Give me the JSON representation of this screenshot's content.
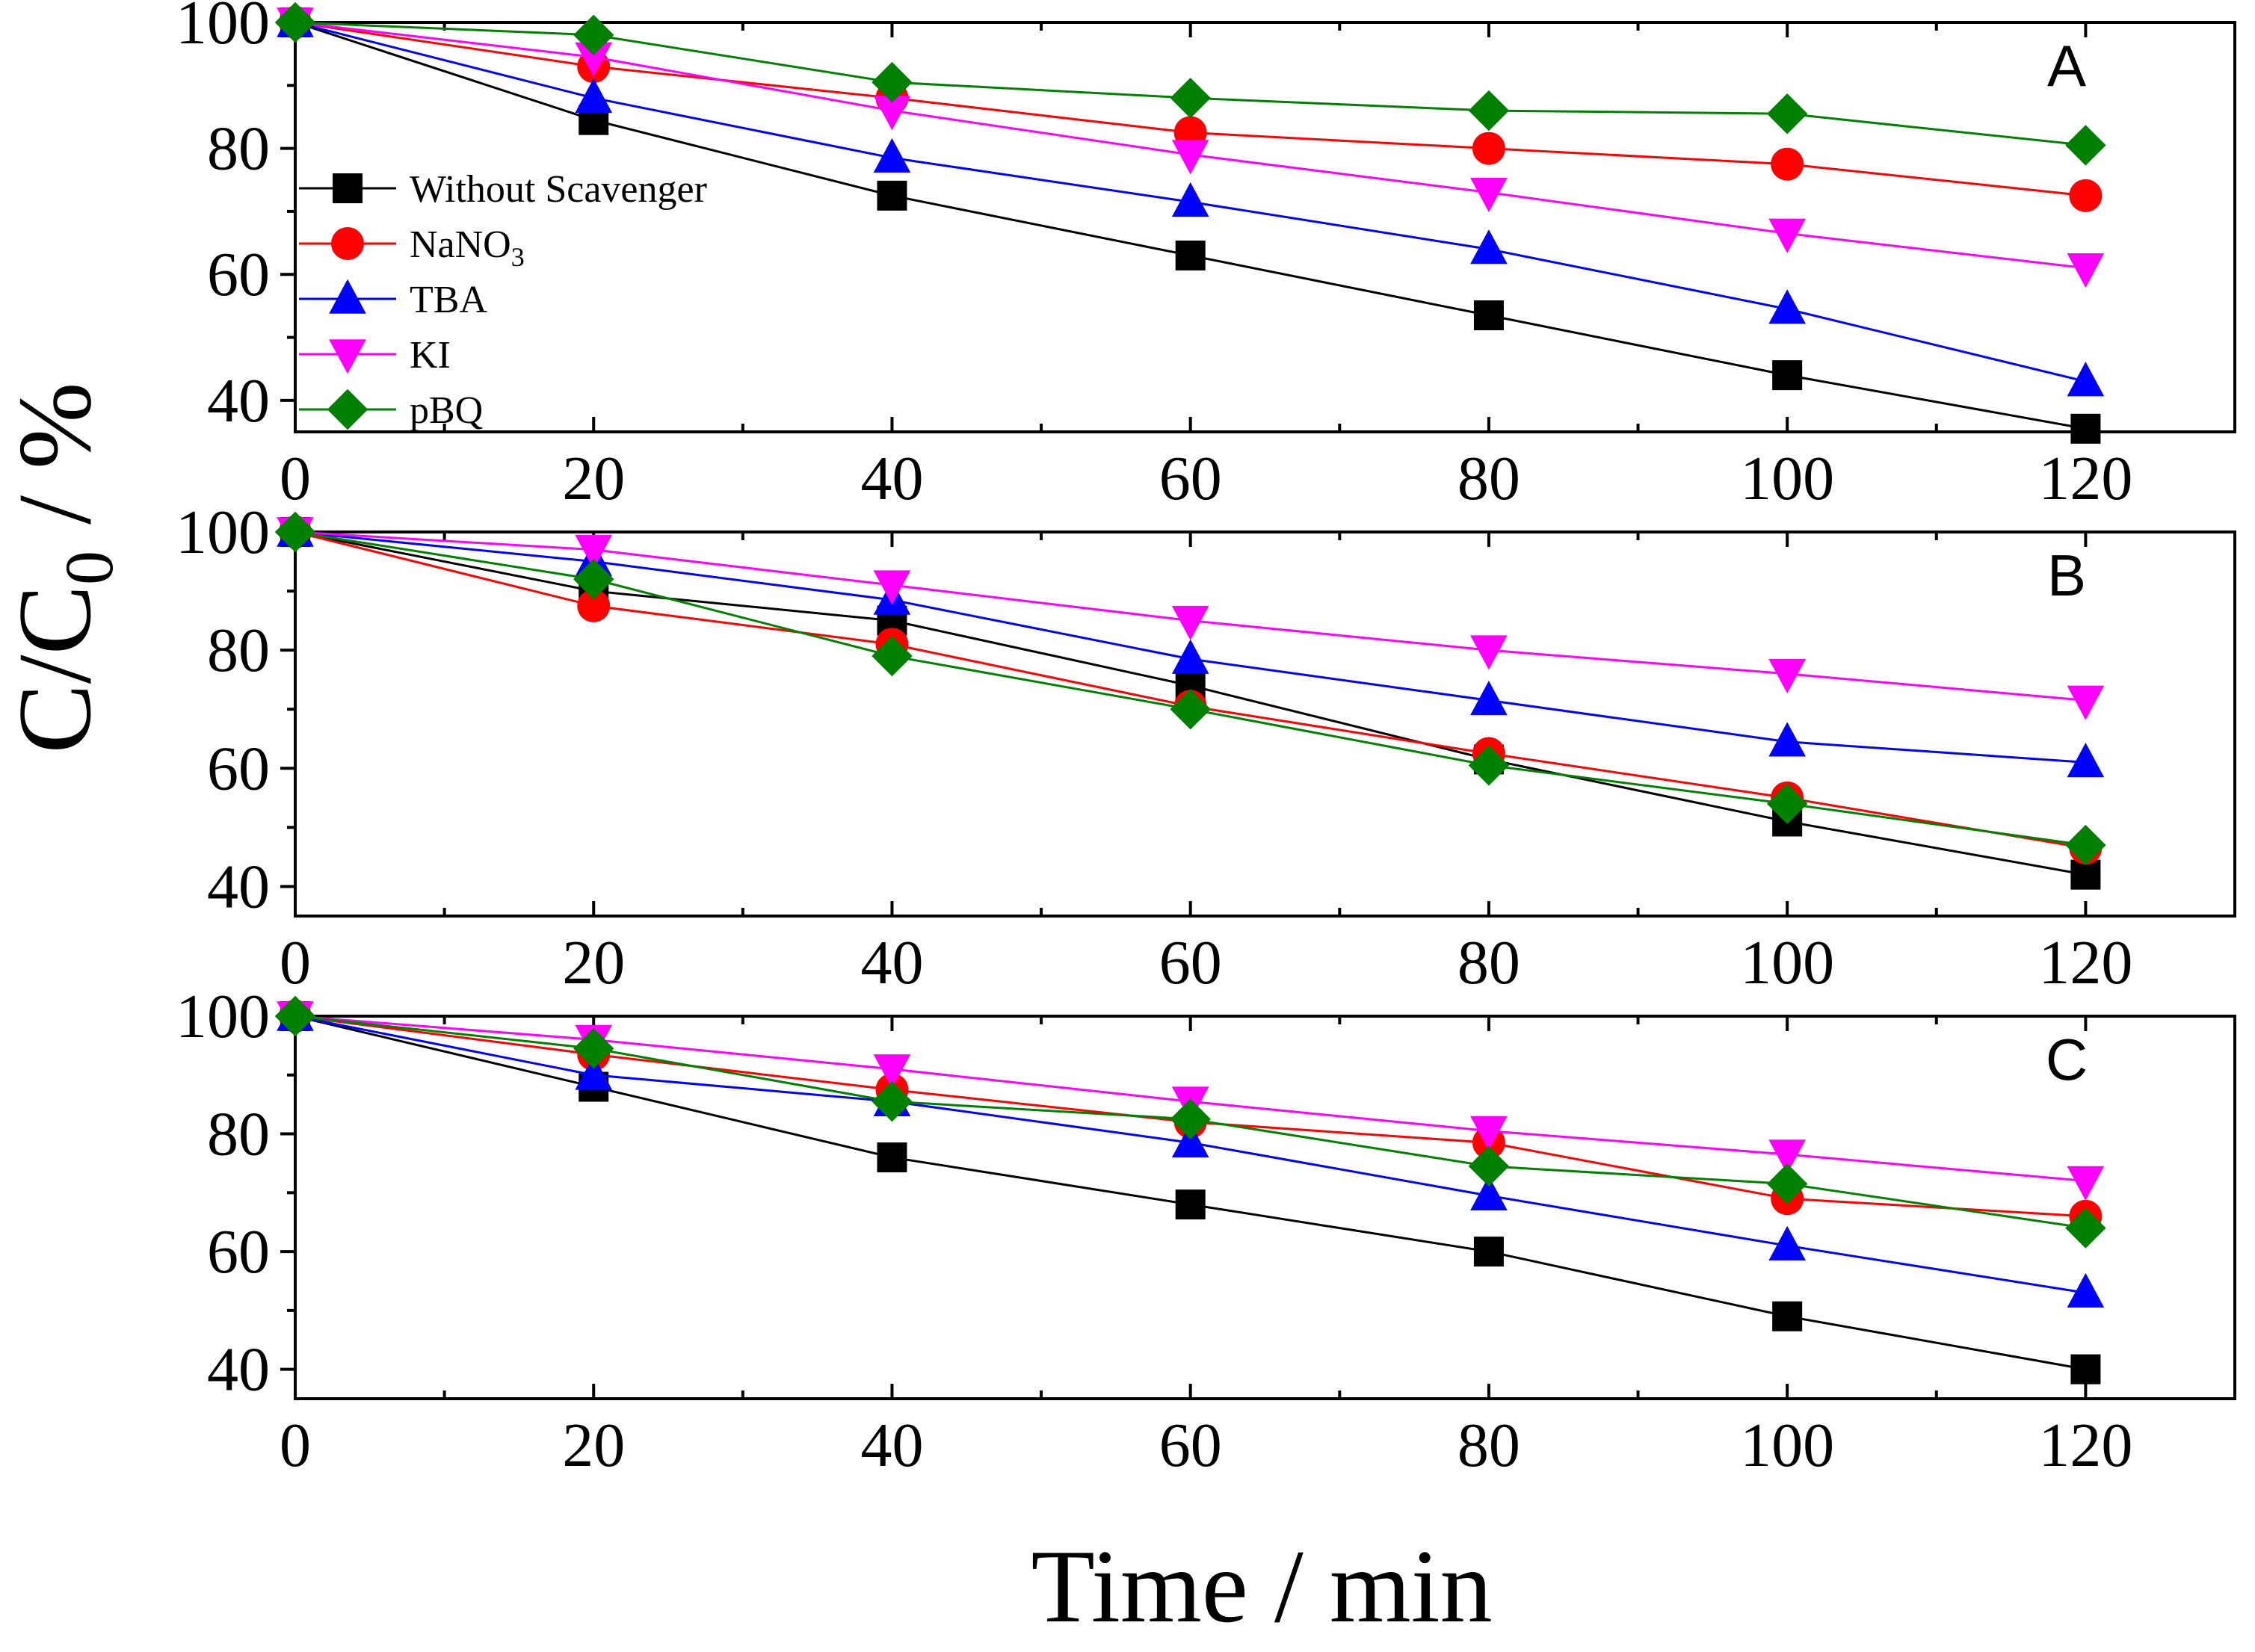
{
  "chart_data": {
    "type": "line",
    "ylabel": "C/C",
    "ylabel_sub": "0",
    "ylabel_unit": " / %",
    "xlabel": "Time / min",
    "x_ticks": [
      "0",
      "20",
      "40",
      "60",
      "80",
      "100",
      "120"
    ],
    "y_ticks": [
      "40",
      "60",
      "80",
      "100"
    ],
    "xlim": [
      0,
      130
    ],
    "ylim": [
      35,
      100
    ],
    "legend": {
      "location": "left",
      "entries": [
        {
          "label": "Without Scavenger",
          "sub": ""
        },
        {
          "label": "NaNO",
          "sub": "3"
        },
        {
          "label": "TBA",
          "sub": ""
        },
        {
          "label": "KI",
          "sub": ""
        },
        {
          "label": "pBQ",
          "sub": ""
        }
      ]
    },
    "series_styles": [
      {
        "name": "Without Scavenger",
        "color": "#000000",
        "marker": "square"
      },
      {
        "name": "NaNO3",
        "color": "#ff0000",
        "marker": "circle"
      },
      {
        "name": "TBA",
        "color": "#0000ff",
        "marker": "triangle-up"
      },
      {
        "name": "KI",
        "color": "#ff00ff",
        "marker": "triangle-down"
      },
      {
        "name": "pBQ",
        "color": "#008000",
        "marker": "diamond"
      }
    ],
    "x": [
      0,
      20,
      40,
      60,
      80,
      100,
      120
    ],
    "panels": [
      {
        "label": "A",
        "series": [
          {
            "name": "Without Scavenger",
            "values": [
              100,
              84.5,
              72.5,
              63,
              53.5,
              44,
              35.5
            ]
          },
          {
            "name": "NaNO3",
            "values": [
              100,
              93,
              88,
              82.5,
              80,
              77.5,
              72.5
            ]
          },
          {
            "name": "TBA",
            "values": [
              100,
              88,
              78.5,
              71.5,
              64,
              54.5,
              43
            ]
          },
          {
            "name": "KI",
            "values": [
              100,
              94.5,
              86,
              79,
              73,
              66.5,
              61
            ]
          },
          {
            "name": "pBQ",
            "values": [
              100,
              98,
              90.5,
              88,
              86,
              85.5,
              80.5
            ]
          }
        ]
      },
      {
        "label": "B",
        "series": [
          {
            "name": "Without Scavenger",
            "values": [
              100,
              90,
              85,
              74,
              61.5,
              51,
              42
            ]
          },
          {
            "name": "NaNO3",
            "values": [
              100,
              87.5,
              81,
              70.5,
              62.5,
              55,
              46.5
            ]
          },
          {
            "name": "TBA",
            "values": [
              100,
              95,
              88.5,
              78.5,
              71.5,
              64.5,
              61
            ]
          },
          {
            "name": "KI",
            "values": [
              100,
              97,
              91,
              85,
              80,
              76,
              71.5
            ]
          },
          {
            "name": "pBQ",
            "values": [
              100,
              92,
              79,
              70,
              60.5,
              54,
              47
            ]
          }
        ]
      },
      {
        "label": "C",
        "series": [
          {
            "name": "Without Scavenger",
            "values": [
              100,
              88,
              76,
              68,
              60,
              49,
              40
            ]
          },
          {
            "name": "NaNO3",
            "values": [
              100,
              93.5,
              87.5,
              82,
              78.5,
              69,
              66
            ]
          },
          {
            "name": "TBA",
            "values": [
              100,
              90,
              85.5,
              78.5,
              69.5,
              61,
              53
            ]
          },
          {
            "name": "KI",
            "values": [
              100,
              96,
              91,
              85.5,
              80.5,
              76.5,
              72
            ]
          },
          {
            "name": "pBQ",
            "values": [
              100,
              94.5,
              85.5,
              82.5,
              74.5,
              71.5,
              64
            ]
          }
        ]
      }
    ]
  }
}
